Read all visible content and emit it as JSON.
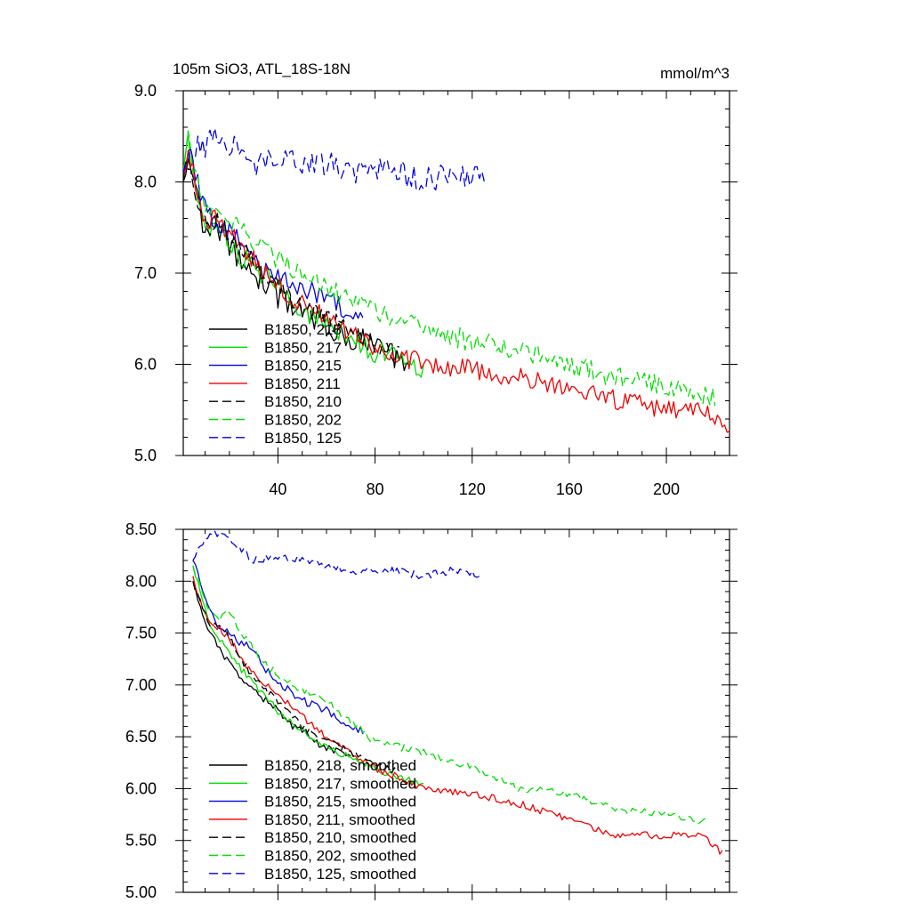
{
  "chart_data": [
    {
      "type": "line",
      "title": "105m SiO3, ATL_18S-18N",
      "units": "mmol/m^3",
      "xlim": [
        1,
        226
      ],
      "ylim": [
        5.0,
        9.0
      ],
      "xticks": [
        40,
        80,
        120,
        160,
        200
      ],
      "xtick_labels": [
        "40",
        "80",
        "120",
        "160",
        "200"
      ],
      "yticks": [
        5.0,
        6.0,
        7.0,
        8.0,
        9.0
      ],
      "ytick_labels": [
        "5.0",
        "6.0",
        "7.0",
        "8.0",
        "9.0"
      ],
      "legend_position": "bottom-left",
      "series": [
        {
          "name": "B1850, 218",
          "color": "#000000",
          "dash": "solid",
          "noise": 0.14,
          "x": [
            1,
            3,
            6,
            10,
            15,
            20,
            25,
            30,
            35,
            40,
            50,
            60,
            70,
            80,
            90,
            94
          ],
          "y": [
            8.0,
            8.3,
            7.95,
            7.45,
            7.5,
            7.3,
            7.15,
            7.0,
            6.9,
            6.75,
            6.55,
            6.4,
            6.3,
            6.2,
            6.05,
            5.95
          ]
        },
        {
          "name": "B1850, 217",
          "color": "#00dd00",
          "dash": "solid",
          "noise": 0.13,
          "x": [
            1,
            3,
            6,
            10,
            15,
            20,
            25,
            30,
            40,
            50,
            60,
            70,
            80,
            90,
            100
          ],
          "y": [
            8.1,
            8.45,
            8.0,
            7.55,
            7.5,
            7.35,
            7.2,
            7.05,
            6.85,
            6.6,
            6.45,
            6.3,
            6.15,
            6.05,
            5.95
          ]
        },
        {
          "name": "B1850, 215",
          "color": "#0000dd",
          "dash": "solid",
          "noise": 0.12,
          "x": [
            1,
            3,
            6,
            10,
            15,
            20,
            25,
            30,
            40,
            50,
            60,
            70,
            75
          ],
          "y": [
            8.1,
            8.35,
            8.05,
            7.7,
            7.5,
            7.45,
            7.3,
            7.15,
            6.95,
            6.85,
            6.75,
            6.55,
            6.5
          ]
        },
        {
          "name": "B1850, 211",
          "color": "#ee0000",
          "dash": "solid",
          "noise": 0.11,
          "x": [
            1,
            3,
            6,
            10,
            15,
            20,
            30,
            40,
            50,
            60,
            70,
            80,
            100,
            120,
            140,
            160,
            180,
            200,
            215,
            226
          ],
          "y": [
            8.05,
            8.4,
            8.0,
            7.55,
            7.6,
            7.45,
            7.15,
            6.85,
            6.65,
            6.5,
            6.35,
            6.2,
            6.0,
            5.95,
            5.85,
            5.75,
            5.6,
            5.5,
            5.5,
            5.35
          ]
        },
        {
          "name": "B1850, 210",
          "color": "#000000",
          "dash": "dashed",
          "noise": 0.12,
          "x": [
            1,
            3,
            6,
            10,
            15,
            20,
            30,
            40,
            50,
            60,
            70,
            80,
            90
          ],
          "y": [
            8.0,
            8.25,
            7.9,
            7.5,
            7.55,
            7.4,
            7.1,
            6.85,
            6.6,
            6.5,
            6.35,
            6.2,
            6.1
          ]
        },
        {
          "name": "B1850, 202",
          "color": "#00dd00",
          "dash": "dashed",
          "noise": 0.12,
          "x": [
            1,
            3,
            6,
            10,
            15,
            20,
            30,
            40,
            50,
            60,
            70,
            80,
            100,
            120,
            140,
            160,
            180,
            200,
            220
          ],
          "y": [
            8.1,
            8.45,
            8.05,
            7.75,
            7.75,
            7.6,
            7.35,
            7.15,
            7.0,
            6.85,
            6.7,
            6.6,
            6.4,
            6.25,
            6.15,
            6.0,
            5.85,
            5.75,
            5.65
          ]
        },
        {
          "name": "B1850, 125",
          "color": "#0000dd",
          "dash": "dashed",
          "noise": 0.14,
          "x": [
            1,
            5,
            10,
            15,
            20,
            30,
            40,
            50,
            60,
            70,
            80,
            90,
            100,
            110,
            120,
            126
          ],
          "y": [
            8.1,
            8.35,
            8.4,
            8.5,
            8.4,
            8.2,
            8.3,
            8.15,
            8.2,
            8.1,
            8.15,
            8.1,
            8.0,
            8.1,
            8.05,
            8.05
          ]
        }
      ]
    },
    {
      "type": "line",
      "xlim": [
        1,
        226
      ],
      "ylim": [
        5.0,
        8.5
      ],
      "xticks": [
        40,
        80,
        120,
        160,
        200
      ],
      "yticks": [
        5.0,
        5.5,
        6.0,
        6.5,
        7.0,
        7.5,
        8.0,
        8.5
      ],
      "ytick_labels": [
        "5.00",
        "5.50",
        "6.00",
        "6.50",
        "7.00",
        "7.50",
        "8.00",
        "8.50"
      ],
      "legend_position": "bottom-left",
      "series": [
        {
          "name": "B1850, 218, smoothed",
          "color": "#000000",
          "dash": "solid",
          "noise": 0.035,
          "x": [
            5,
            8,
            12,
            16,
            20,
            25,
            30,
            35,
            40,
            45,
            50,
            55,
            60,
            65,
            70
          ],
          "y": [
            8.0,
            7.75,
            7.5,
            7.35,
            7.2,
            7.05,
            6.95,
            6.85,
            6.75,
            6.62,
            6.55,
            6.45,
            6.4,
            6.35,
            6.35
          ]
        },
        {
          "name": "B1850, 217, smoothed",
          "color": "#00dd00",
          "dash": "solid",
          "noise": 0.035,
          "x": [
            5,
            8,
            12,
            16,
            20,
            25,
            30,
            35,
            40,
            50,
            60,
            70,
            80,
            90,
            100
          ],
          "y": [
            8.15,
            7.9,
            7.6,
            7.45,
            7.3,
            7.15,
            7.0,
            6.9,
            6.75,
            6.55,
            6.4,
            6.3,
            6.2,
            6.1,
            6.05
          ]
        },
        {
          "name": "B1850, 215, smoothed",
          "color": "#0000dd",
          "dash": "solid",
          "noise": 0.04,
          "x": [
            5,
            8,
            12,
            16,
            20,
            25,
            30,
            35,
            40,
            45,
            50,
            55,
            60,
            65,
            70,
            75
          ],
          "y": [
            8.2,
            8.0,
            7.7,
            7.55,
            7.5,
            7.4,
            7.35,
            7.15,
            7.0,
            6.95,
            6.85,
            6.8,
            6.75,
            6.65,
            6.6,
            6.55
          ]
        },
        {
          "name": "B1850, 211, smoothed",
          "color": "#ee0000",
          "dash": "solid",
          "noise": 0.035,
          "x": [
            5,
            8,
            12,
            16,
            20,
            25,
            30,
            40,
            50,
            60,
            70,
            80,
            100,
            120,
            140,
            160,
            180,
            200,
            215,
            223
          ],
          "y": [
            8.05,
            7.8,
            7.6,
            7.55,
            7.45,
            7.25,
            7.1,
            6.9,
            6.7,
            6.5,
            6.35,
            6.2,
            6.0,
            5.95,
            5.85,
            5.7,
            5.55,
            5.55,
            5.55,
            5.38
          ]
        },
        {
          "name": "B1850, 210, smoothed",
          "color": "#000000",
          "dash": "dashed",
          "noise": 0.035,
          "x": [
            5,
            8,
            12,
            16,
            20,
            25,
            30,
            40,
            50,
            60,
            70,
            80,
            90
          ],
          "y": [
            8.0,
            7.8,
            7.55,
            7.6,
            7.45,
            7.25,
            7.05,
            6.85,
            6.6,
            6.45,
            6.35,
            6.25,
            6.15
          ]
        },
        {
          "name": "B1850, 202, smoothed",
          "color": "#00dd00",
          "dash": "dashed",
          "noise": 0.035,
          "x": [
            5,
            8,
            12,
            16,
            20,
            25,
            30,
            35,
            40,
            50,
            60,
            70,
            80,
            100,
            120,
            140,
            160,
            180,
            200,
            216
          ],
          "y": [
            8.15,
            7.95,
            7.7,
            7.65,
            7.7,
            7.5,
            7.35,
            7.2,
            7.1,
            6.95,
            6.85,
            6.65,
            6.45,
            6.35,
            6.2,
            6.0,
            5.95,
            5.8,
            5.75,
            5.68
          ]
        },
        {
          "name": "B1850, 125, smoothed",
          "color": "#0000dd",
          "dash": "dashed",
          "noise": 0.04,
          "x": [
            5,
            8,
            12,
            16,
            20,
            25,
            30,
            40,
            50,
            60,
            70,
            80,
            90,
            100,
            110,
            120,
            124
          ],
          "y": [
            8.2,
            8.35,
            8.45,
            8.45,
            8.4,
            8.3,
            8.2,
            8.25,
            8.2,
            8.15,
            8.1,
            8.1,
            8.1,
            8.05,
            8.1,
            8.08,
            8.05
          ]
        }
      ]
    }
  ]
}
